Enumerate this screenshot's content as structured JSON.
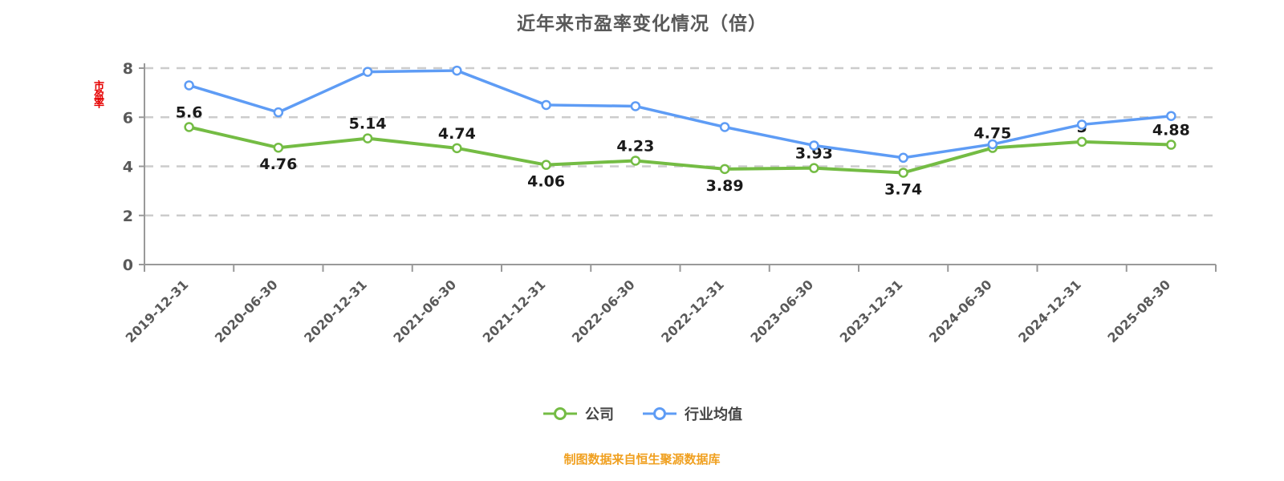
{
  "title": "近年来市盈率变化情况（倍）",
  "y_axis_label": "市盈率",
  "footer": "制图数据来自恒生聚源数据库",
  "chart_data": {
    "type": "line",
    "title": "近年来市盈率变化情况（倍）",
    "categories": [
      "2019-12-31",
      "2020-06-30",
      "2020-12-31",
      "2021-06-30",
      "2021-12-31",
      "2022-06-30",
      "2022-12-31",
      "2023-06-30",
      "2023-12-31",
      "2024-06-30",
      "2024-12-31",
      "2025-08-30"
    ],
    "series": [
      {
        "name": "公司",
        "color": "#74bc44",
        "marker_fill": "#ffffff",
        "show_labels": true,
        "values": [
          5.6,
          4.76,
          5.14,
          4.74,
          4.06,
          4.23,
          3.89,
          3.93,
          3.74,
          4.75,
          5,
          4.88
        ]
      },
      {
        "name": "行业均值",
        "color": "#5e9cf5",
        "marker_fill": "#ffffff",
        "show_labels": false,
        "values": [
          7.3,
          6.2,
          7.85,
          7.9,
          6.5,
          6.45,
          5.6,
          4.85,
          4.35,
          4.9,
          5.7,
          6.05
        ]
      }
    ],
    "ylim": [
      0,
      8
    ],
    "yticks": [
      0,
      2,
      4,
      6,
      8
    ],
    "grid": "dashed-horizontal",
    "legend_position": "bottom",
    "colors": {
      "axis": "#999999",
      "gridline": "#cccccc",
      "tick_label": "#595959",
      "data_label": "#1a1a1a",
      "title": "#595959",
      "footer": "#f0a020",
      "y_axis_label": "#e60000"
    }
  }
}
